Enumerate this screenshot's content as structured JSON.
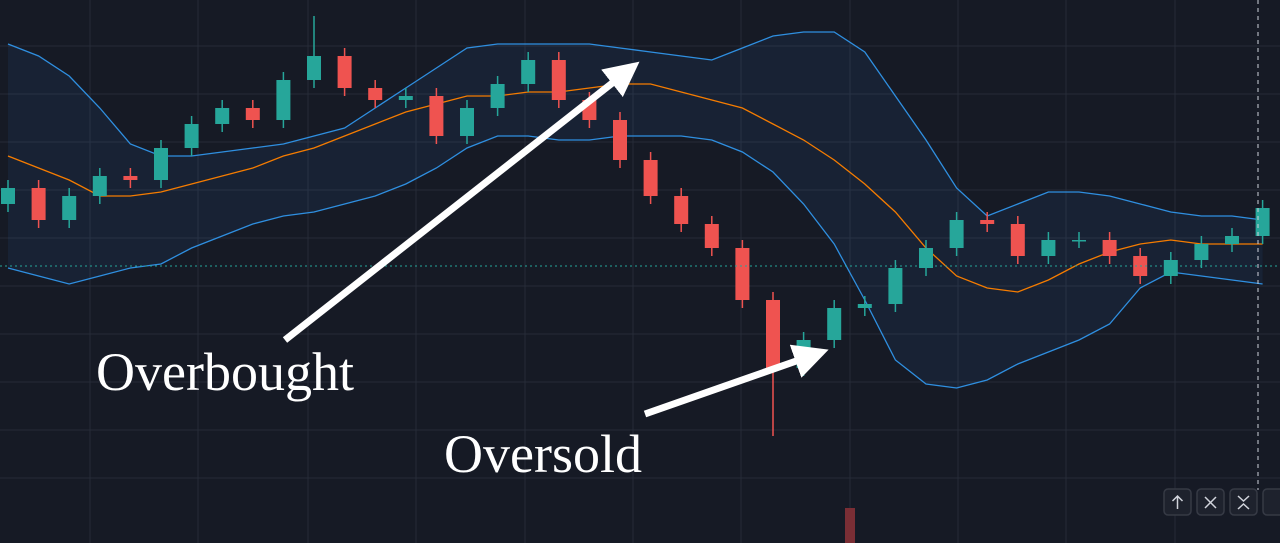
{
  "chart_data": {
    "type": "candlestick",
    "open": [
      64,
      68,
      60,
      66,
      71,
      70,
      78,
      84,
      88,
      85,
      95,
      101,
      93,
      90,
      91,
      81,
      88,
      94,
      100,
      90,
      85,
      75,
      66,
      59,
      53,
      40,
      23,
      30,
      38,
      39,
      48,
      53,
      60,
      59,
      51,
      55,
      55,
      51,
      46,
      50,
      54,
      56
    ],
    "high": [
      70,
      70,
      68,
      73,
      73,
      80,
      86,
      90,
      90,
      97,
      111,
      103,
      95,
      93,
      93,
      90,
      96,
      102,
      102,
      92,
      87,
      77,
      68,
      61,
      55,
      42,
      32,
      40,
      41,
      50,
      55,
      62,
      62,
      61,
      57,
      57,
      57,
      53,
      52,
      56,
      58,
      65
    ],
    "low": [
      62,
      58,
      58,
      64,
      68,
      68,
      76,
      82,
      83,
      83,
      93,
      91,
      88,
      88,
      79,
      79,
      86,
      92,
      88,
      83,
      73,
      64,
      57,
      51,
      38,
      6,
      21,
      28,
      36,
      37,
      46,
      51,
      57,
      49,
      49,
      53,
      49,
      44,
      44,
      48,
      52,
      54
    ],
    "close": [
      68,
      60,
      66,
      71,
      70,
      78,
      84,
      88,
      85,
      95,
      101,
      93,
      90,
      91,
      81,
      88,
      94,
      100,
      90,
      85,
      75,
      66,
      59,
      53,
      40,
      23,
      30,
      38,
      39,
      48,
      53,
      60,
      59,
      51,
      55,
      55,
      51,
      46,
      50,
      54,
      56,
      63
    ],
    "up_color": "#26a69a",
    "down_color": "#ef5350",
    "series": [
      {
        "color": "#2f8fe0",
        "values": [
          104,
          101,
          96,
          88,
          79,
          76,
          76,
          77,
          78,
          79,
          81,
          83,
          88,
          93,
          98,
          103,
          104,
          104,
          104,
          104,
          103,
          102,
          101,
          100,
          103,
          106,
          107,
          107,
          102,
          91,
          80,
          68,
          61,
          64,
          67,
          67,
          66,
          64,
          62,
          61,
          61,
          60
        ]
      },
      {
        "color": "#f57c00",
        "values": [
          76,
          73,
          70,
          66,
          66,
          67,
          69,
          71,
          73,
          76,
          78,
          81,
          84,
          87,
          89,
          91,
          91,
          92,
          92,
          93,
          94,
          94,
          92,
          90,
          88,
          84,
          80,
          75,
          69,
          62,
          53,
          46,
          43,
          42,
          45,
          49,
          52,
          54,
          55,
          54,
          54,
          54
        ]
      },
      {
        "color": "#2f8fe0",
        "values": [
          48,
          46,
          44,
          46,
          48,
          49,
          53,
          56,
          59,
          61,
          62,
          64,
          66,
          69,
          73,
          78,
          81,
          81,
          80,
          80,
          81,
          81,
          81,
          80,
          77,
          72,
          64,
          54,
          40,
          25,
          19,
          18,
          20,
          24,
          27,
          30,
          34,
          43,
          47,
          46,
          45,
          44
        ]
      }
    ],
    "annotations": [
      "Overbought",
      "Oversold"
    ]
  }
}
